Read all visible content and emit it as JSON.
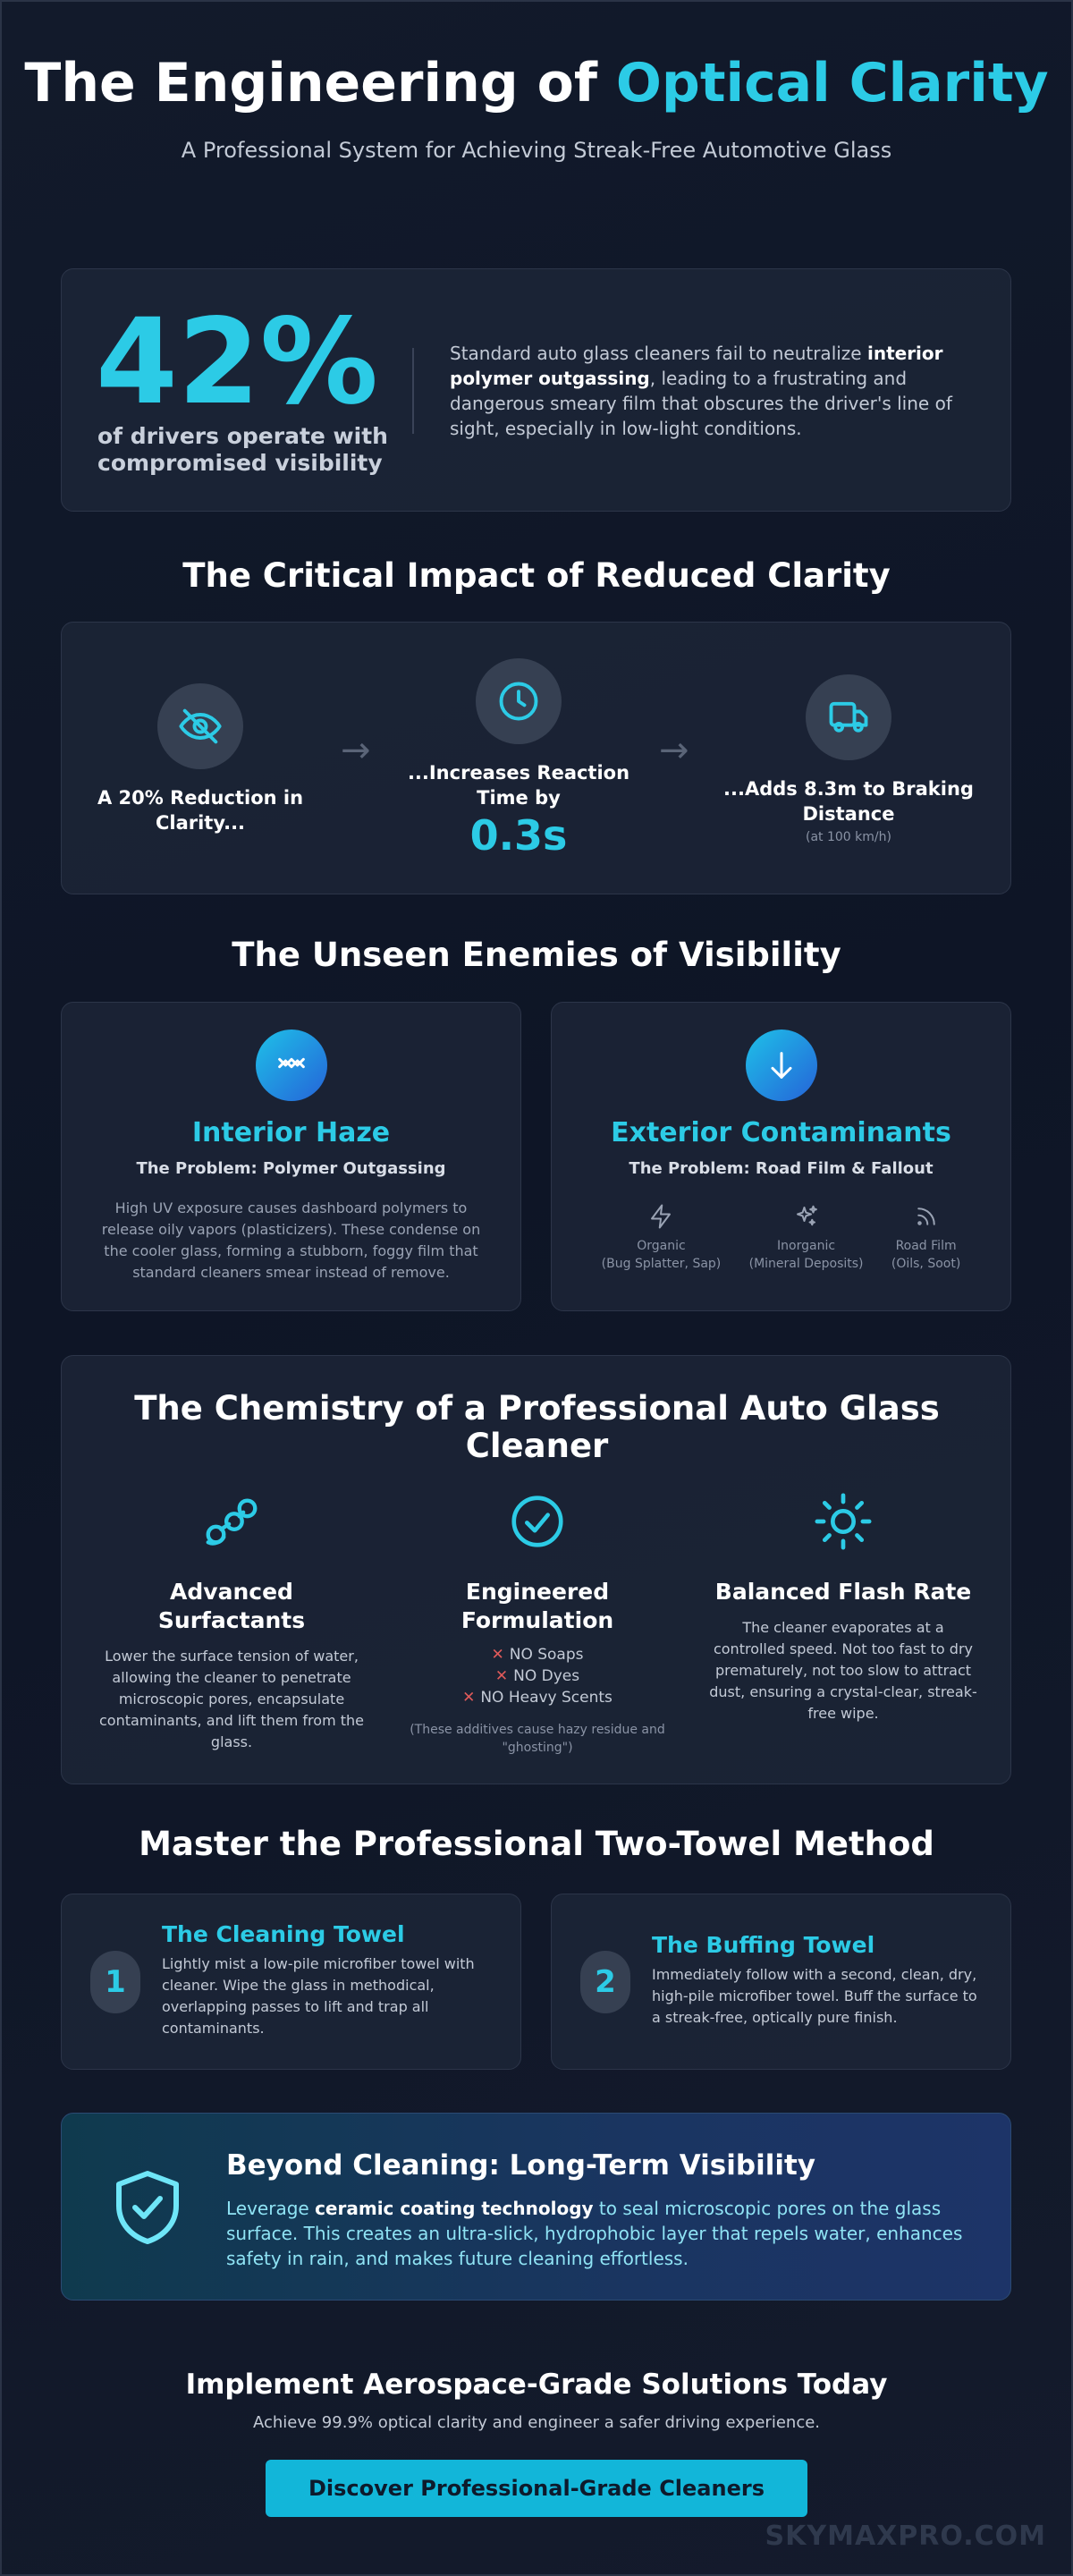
{
  "hero": {
    "title_main": "The Engineering of ",
    "title_accent": "Optical Clarity",
    "subtitle": "A Professional System for Achieving Streak-Free Automotive Glass"
  },
  "stat": {
    "number": "42%",
    "label": "of drivers operate with compromised visibility",
    "text_before": "Standard auto glass cleaners fail to neutralize ",
    "text_bold": "interior polymer outgassing",
    "text_after": ", leading to a frustrating and dangerous smeary film that obscures the driver's line of sight, especially in low-light conditions."
  },
  "impact": {
    "title": "The Critical Impact of Reduced Clarity",
    "steps": [
      {
        "label": "A 20% Reduction in Clarity...",
        "icon": "eye-off-icon"
      },
      {
        "label": "...Increases Reaction Time by",
        "value": "0.3s",
        "icon": "clock-icon"
      },
      {
        "label": "...Adds 8.3m to Braking Distance",
        "note": "(at 100 km/h)",
        "icon": "truck-icon"
      }
    ],
    "arrow": "→"
  },
  "enemies": {
    "title": "The Unseen Enemies of Visibility",
    "interior": {
      "title": "Interior Haze",
      "sub": "The Problem: Polymer Outgassing",
      "desc": "High UV exposure causes dashboard polymers to release oily vapors (plasticizers). These condense on the cooler glass, forming a stubborn, foggy film that standard cleaners smear instead of remove."
    },
    "exterior": {
      "title": "Exterior Contaminants",
      "sub": "The Problem: Road Film & Fallout",
      "items": [
        {
          "name": "Organic",
          "detail": "(Bug Splatter, Sap)",
          "icon": "bolt-icon"
        },
        {
          "name": "Inorganic",
          "detail": "(Mineral Deposits)",
          "icon": "sparkles-icon"
        },
        {
          "name": "Road Film",
          "detail": "(Oils, Soot)",
          "icon": "rss-icon"
        }
      ]
    }
  },
  "chemistry": {
    "title": "The Chemistry of a Professional Auto Glass Cleaner",
    "surfactants": {
      "title": "Advanced Surfactants",
      "text": "Lower the surface tension of water, allowing the cleaner to penetrate microscopic pores, encapsulate contaminants, and lift them from the glass."
    },
    "formulation": {
      "title": "Engineered Formulation",
      "items": [
        "NO Soaps",
        "NO Dyes",
        "NO Heavy Scents"
      ],
      "mark": "✕",
      "note": "(These additives cause hazy residue and \"ghosting\")"
    },
    "flash": {
      "title": "Balanced Flash Rate",
      "text": "The cleaner evaporates at a controlled speed. Not too fast to dry prematurely, not too slow to attract dust, ensuring a crystal-clear, streak-free wipe."
    }
  },
  "method": {
    "title": "Master the Professional Two-Towel Method",
    "towels": [
      {
        "num": "1",
        "title": "The Cleaning Towel",
        "text": "Lightly mist a low-pile microfiber towel with cleaner. Wipe the glass in methodical, overlapping passes to lift and trap all contaminants."
      },
      {
        "num": "2",
        "title": "The Buffing Towel",
        "text": "Immediately follow with a second, clean, dry, high-pile microfiber towel. Buff the surface to a streak-free, optically pure finish."
      }
    ]
  },
  "ceramic": {
    "title": "Beyond Cleaning: Long-Term Visibility",
    "text_before": "Leverage ",
    "text_bold": "ceramic coating technology",
    "text_after": " to seal microscopic pores on the glass surface. This creates an ultra-slick, hydrophobic layer that repels water, enhances safety in rain, and makes future cleaning effortless."
  },
  "cta": {
    "title": "Implement Aerospace-Grade Solutions Today",
    "sub": "Achieve 99.9% optical clarity and engineer a safer driving experience.",
    "button": "Discover Professional-Grade Cleaners"
  },
  "watermark": "SKYMAXPRO.COM",
  "colors": {
    "accent": "#2ccbe6",
    "background": "#0e1526",
    "card": "#1e2638",
    "danger": "#e05a5a",
    "button": "#12b6d9"
  }
}
